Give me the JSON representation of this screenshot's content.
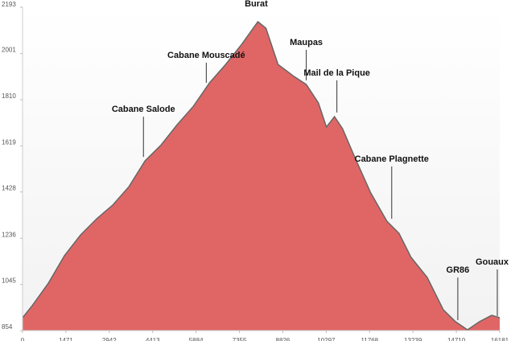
{
  "chart_data": {
    "type": "area",
    "x": [
      0,
      328,
      875,
      1421,
      1968,
      2515,
      3061,
      3608,
      4155,
      4701,
      5248,
      5795,
      6341,
      6888,
      7435,
      7981,
      8254,
      8664,
      9211,
      9621,
      10031,
      10304,
      10578,
      10851,
      11261,
      11808,
      12355,
      12765,
      13175,
      13722,
      14269,
      14679,
      15088,
      15498,
      15908,
      16181
    ],
    "values": [
      907,
      957,
      1050,
      1164,
      1250,
      1317,
      1374,
      1450,
      1557,
      1623,
      1707,
      1783,
      1880,
      1956,
      2040,
      2133,
      2106,
      1956,
      1906,
      1873,
      1797,
      1697,
      1740,
      1690,
      1573,
      1424,
      1307,
      1257,
      1157,
      1074,
      940,
      891,
      857,
      891,
      917,
      907
    ],
    "color": "#e06666",
    "xlim": [
      0,
      16181
    ],
    "xticks": [
      0,
      1471,
      2942,
      4413,
      5884,
      7355,
      8826,
      10297,
      11768,
      13239,
      14710,
      16181
    ],
    "ylim": [
      854,
      2193
    ],
    "yticks": [
      854,
      1045,
      1236,
      1428,
      1619,
      1810,
      2001,
      2193
    ],
    "grid": false,
    "annotations": [
      {
        "text": "Cabane Salode",
        "x": 4100,
        "y": 1573
      },
      {
        "text": "Cabane Mouscadé",
        "x": 6231,
        "y": 1880
      },
      {
        "text": "Burat",
        "x": 7926,
        "y": 2133
      },
      {
        "text": "Maupas",
        "x": 9621,
        "y": 1890
      },
      {
        "text": "Mail de la Pique",
        "x": 10660,
        "y": 1757
      },
      {
        "text": "Cabane Plagnette",
        "x": 12519,
        "y": 1317
      },
      {
        "text": "GR86",
        "x": 14760,
        "y": 897
      },
      {
        "text": "Gouaux",
        "x": 16099,
        "y": 914
      }
    ]
  }
}
